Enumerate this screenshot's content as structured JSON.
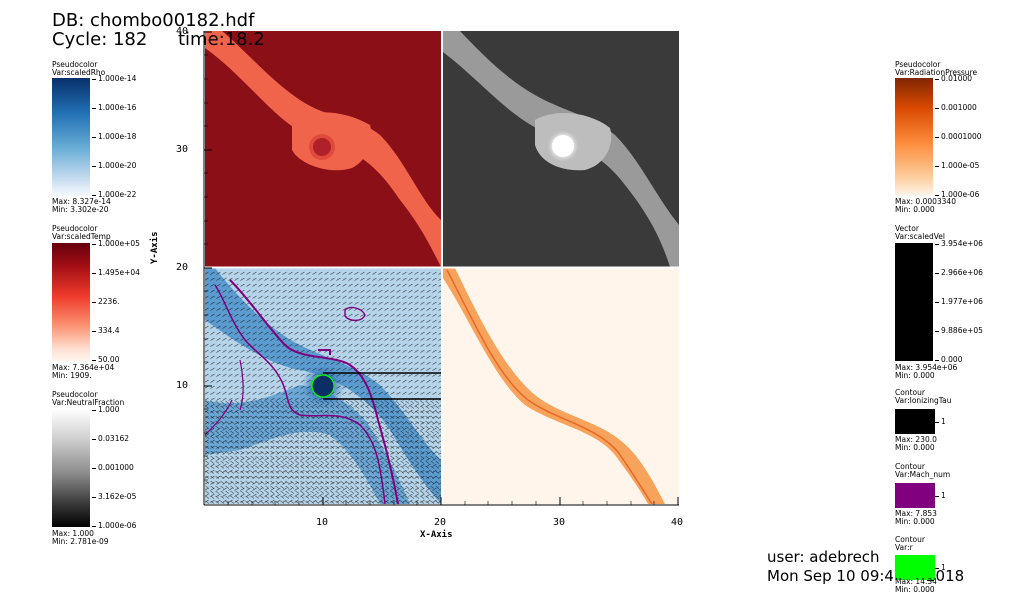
{
  "header": {
    "db_line": "DB: chombo00182.hdf",
    "cycle_line": "Cycle: 182",
    "time_line": "time:18.2"
  },
  "legends_left": [
    {
      "plot": "Pseudocolor",
      "var": "Var:scaledRho",
      "ticks": [
        "1.000e-14",
        "1.000e-16",
        "1.000e-18",
        "1.000e-20",
        "1.000e-22"
      ],
      "max": "Max: 8.327e-14",
      "min": "Min: 3.302e-20",
      "colormap": "blues"
    },
    {
      "plot": "Pseudocolor",
      "var": "Var:scaledTemp",
      "ticks": [
        "1.000e+05",
        "1.495e+04",
        "2236.",
        "334.4",
        "50.00"
      ],
      "max": "Max: 7.364e+04",
      "min": "Min: 1909.",
      "colormap": "reds"
    },
    {
      "plot": "Pseudocolor",
      "var": "Var:NeutralFraction",
      "ticks": [
        "1.000",
        "0.03162",
        "0.001000",
        "3.162e-05",
        "1.000e-06"
      ],
      "max": "Max: 1.000",
      "min": "Min: 2.781e-09",
      "colormap": "grays"
    }
  ],
  "legends_right": [
    {
      "plot": "Pseudocolor",
      "var": "Var:RadiationPressure",
      "ticks": [
        "0.01000",
        "0.001000",
        "0.0001000",
        "1.000e-05",
        "1.000e-06"
      ],
      "max": "Max: 0.0003340",
      "min": "Min: 0.000",
      "colormap": "oranges"
    },
    {
      "plot": "Vector",
      "var": "Var:scaledVel",
      "ticks": [
        "3.954e+06",
        "2.966e+06",
        "1.977e+06",
        "9.886e+05",
        "0.000"
      ],
      "max": "Max: 3.954e+06",
      "min": "Min: 0.000",
      "colormap": "black"
    }
  ],
  "contours": [
    {
      "plot": "Contour",
      "var": "Var:IonizingTau",
      "level": "1",
      "max": "Max: 230.0",
      "min": "Min: 0.000",
      "color": "#000000"
    },
    {
      "plot": "Contour",
      "var": "Var:Mach_num",
      "level": "1",
      "max": "Max: 7.853",
      "min": "Min: 0.000",
      "color": "#800080"
    },
    {
      "plot": "Contour",
      "var": "Var:r",
      "level": "1",
      "max": "Max: 14.34",
      "min": "Min: 0.000",
      "color": "#00ff00"
    }
  ],
  "axes": {
    "x_label": "X-Axis",
    "y_label": "Y-Axis",
    "x_ticks": [
      "10",
      "20",
      "30",
      "40"
    ],
    "y_ticks": [
      "10",
      "20",
      "30",
      "40"
    ]
  },
  "footer": {
    "user": "user: adebrech",
    "date": "Mon Sep 10 09:4",
    "date_tail": "2018"
  }
}
